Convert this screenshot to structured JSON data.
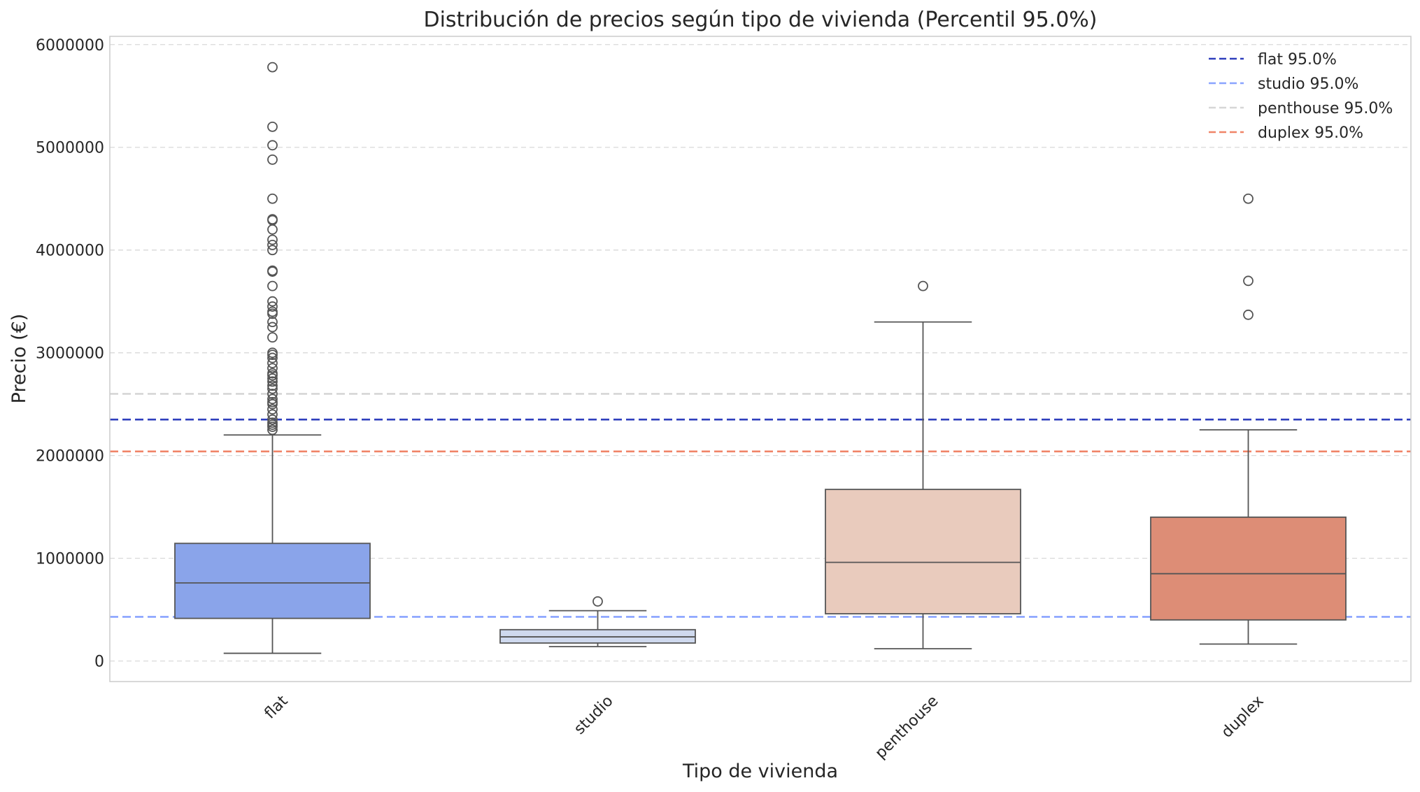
{
  "chart_data": {
    "type": "box",
    "title": "Distribución de precios según tipo de vivienda (Percentil 95.0%)",
    "xlabel": "Tipo de vivienda",
    "ylabel": "Precio (€)",
    "ylim": [
      -200000,
      6080000
    ],
    "yticks": [
      0,
      1000000,
      2000000,
      3000000,
      4000000,
      5000000,
      6000000
    ],
    "ytick_labels": [
      "0",
      "1000000",
      "2000000",
      "3000000",
      "4000000",
      "5000000",
      "6000000"
    ],
    "grid": true,
    "legend_position": "top-right",
    "categories": [
      "flat",
      "studio",
      "penthouse",
      "duplex"
    ],
    "boxes": [
      {
        "category": "flat",
        "color": "#8aa4ea",
        "whisker_low": 75000,
        "q1": 415000,
        "median": 760000,
        "q3": 1145000,
        "whisker_high": 2200000,
        "outliers": [
          5780000,
          5200000,
          5020000,
          4880000,
          4500000,
          4300000,
          4290000,
          4200000,
          4100000,
          4050000,
          4000000,
          3800000,
          3790000,
          3650000,
          3500000,
          3450000,
          3400000,
          3380000,
          3300000,
          3250000,
          3150000,
          3000000,
          2980000,
          2950000,
          2900000,
          2850000,
          2800000,
          2780000,
          2750000,
          2720000,
          2680000,
          2650000,
          2600000,
          2550000,
          2520000,
          2500000,
          2450000,
          2400000,
          2350000,
          2320000,
          2300000,
          2280000,
          2250000
        ]
      },
      {
        "category": "studio",
        "color": "#cfd9ee",
        "whisker_low": 140000,
        "q1": 175000,
        "median": 235000,
        "q3": 305000,
        "whisker_high": 490000,
        "outliers": [
          580000
        ]
      },
      {
        "category": "penthouse",
        "color": "#e9cbbd",
        "whisker_low": 120000,
        "q1": 460000,
        "median": 960000,
        "q3": 1670000,
        "whisker_high": 3300000,
        "outliers": [
          3650000
        ]
      },
      {
        "category": "duplex",
        "color": "#dd8d76",
        "whisker_low": 165000,
        "q1": 400000,
        "median": 850000,
        "q3": 1400000,
        "whisker_high": 2250000,
        "outliers": [
          4500000,
          3700000,
          3370000
        ]
      }
    ],
    "reference_lines": [
      {
        "label": "flat 95.0%",
        "value": 2350000,
        "color": "#2f3fbd"
      },
      {
        "label": "studio 95.0%",
        "value": 430000,
        "color": "#8aa4ff"
      },
      {
        "label": "penthouse 95.0%",
        "value": 2600000,
        "color": "#d6d6d6"
      },
      {
        "label": "duplex 95.0%",
        "value": 2040000,
        "color": "#f08468"
      }
    ]
  }
}
